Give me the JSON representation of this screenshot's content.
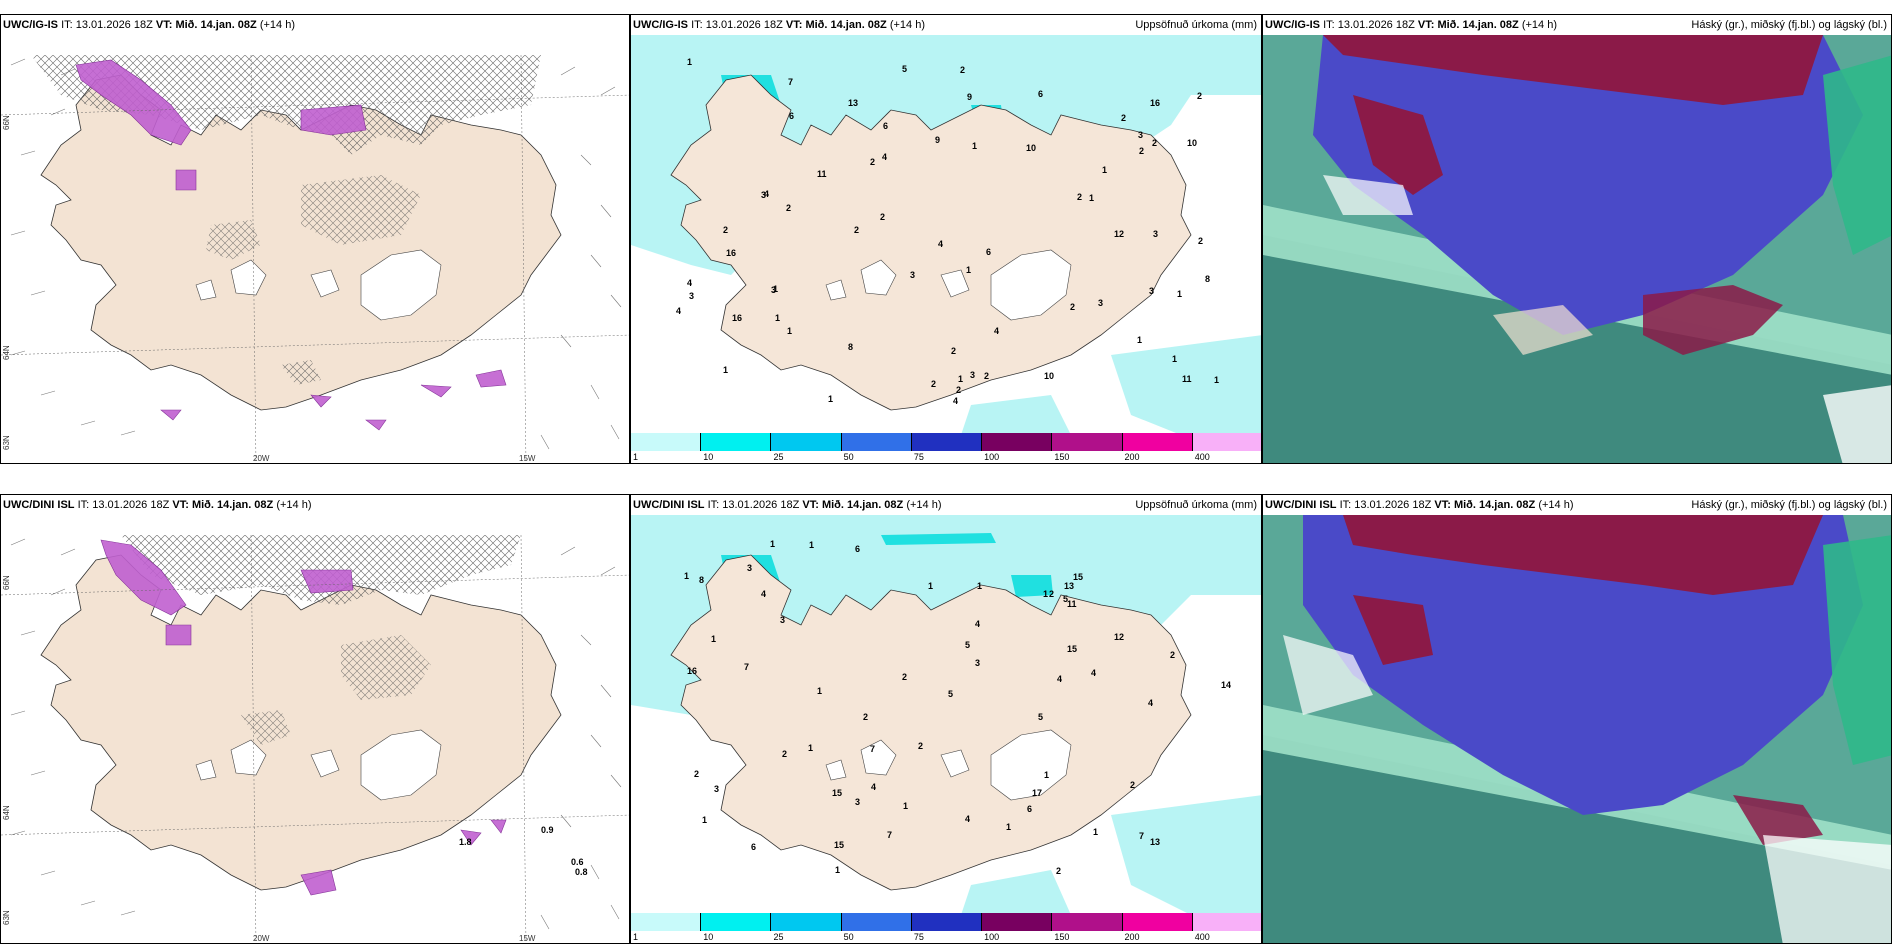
{
  "panels": {
    "top_left": {
      "model": "UWC/IG-IS",
      "it_prefix": "IT:",
      "it": "13.01.2026 18Z",
      "vt_prefix": "VT:",
      "vt": "Mið. 14.jan. 08Z",
      "lead": "(+14 h)",
      "right": ""
    },
    "top_mid": {
      "model": "UWC/IG-IS",
      "it_prefix": "IT:",
      "it": "13.01.2026 18Z",
      "vt_prefix": "VT:",
      "vt": "Mið. 14.jan. 08Z",
      "lead": "(+14 h)",
      "right": "Uppsöfnuð úrkoma (mm)"
    },
    "top_right": {
      "model": "UWC/IG-IS",
      "it_prefix": "IT:",
      "it": "13.01.2026 18Z",
      "vt_prefix": "VT:",
      "vt": "Mið. 14.jan. 08Z",
      "lead": "(+14 h)",
      "right": "Háský (gr.), miðský (fj.bl.) og lágský (bl.)"
    },
    "bottom_left": {
      "model": "UWC/DINI ISL",
      "it_prefix": "IT:",
      "it": "13.01.2026 18Z",
      "vt_prefix": "VT:",
      "vt": "Mið. 14.jan. 08Z",
      "lead": "(+14 h)",
      "right": ""
    },
    "bottom_mid": {
      "model": "UWC/DINI ISL",
      "it_prefix": "IT:",
      "it": "13.01.2026 18Z",
      "vt_prefix": "VT:",
      "vt": "Mið. 14.jan. 08Z",
      "lead": "(+14 h)",
      "right": "Uppsöfnuð úrkoma (mm)"
    },
    "bottom_right": {
      "model": "UWC/DINI ISL",
      "it_prefix": "IT:",
      "it": "13.01.2026 18Z",
      "vt_prefix": "VT:",
      "vt": "Mið. 14.jan. 08Z",
      "lead": "(+14 h)",
      "right": "Háský (gr.), miðský (fj.bl.) og lágský (bl.)"
    }
  },
  "axis_labels": {
    "lat_66": "66N",
    "lat_64": "64N",
    "lat_63": "63N",
    "lon_20": "20W",
    "lon_15": "15W"
  },
  "colorbar": {
    "ticks": [
      "1",
      "10",
      "25",
      "50",
      "75",
      "100",
      "150",
      "200",
      "400"
    ],
    "colors": [
      "#c8fafa",
      "#00f0f0",
      "#00c8f0",
      "#3070e8",
      "#2030c0",
      "#780060",
      "#b0108a",
      "#f000a0",
      "#f8b0f8"
    ]
  },
  "precip_labels_top": [
    "2",
    "2",
    "4",
    "12",
    "2",
    "9",
    "3",
    "10",
    "2",
    "2",
    "1",
    "1",
    "8",
    "7",
    "6",
    "6",
    "13",
    "10",
    "1",
    "1",
    "1",
    "3",
    "3",
    "1",
    "2",
    "11",
    "10",
    "11",
    "8",
    "16",
    "4",
    "4",
    "6",
    "4",
    "3",
    "2",
    "3",
    "2",
    "4",
    "2",
    "2",
    "3",
    "2",
    "2",
    "1",
    "2",
    "2",
    "1",
    "1",
    "6",
    "3",
    "1",
    "1",
    "1",
    "1",
    "1",
    "1",
    "2",
    "4",
    "4",
    "5",
    "9",
    "16",
    "16",
    "3",
    "2",
    "3",
    "2"
  ],
  "precip_labels_bottom": [
    "3",
    "13",
    "4",
    "4",
    "1",
    "7",
    "7",
    "15",
    "15",
    "3",
    "6",
    "5",
    "14",
    "4",
    "12",
    "11",
    "15",
    "16",
    "17",
    "15",
    "13",
    "7",
    "8",
    "6",
    "5",
    "2",
    "2",
    "1",
    "1",
    "1",
    "3",
    "3",
    "2",
    "2",
    "1",
    "1",
    "1",
    "1",
    "1",
    "1",
    "5",
    "1",
    "2",
    "1",
    "1",
    "2",
    "7",
    "2",
    "3",
    "6",
    "5",
    "4",
    "4",
    "4",
    "4",
    "2",
    "1",
    "2",
    "1"
  ],
  "wind_values_bottom": [
    "1.8",
    "0.9",
    "0.6",
    "0.8"
  ],
  "cloud_colors": {
    "high": "#00d08a",
    "mid": "#3b3bd0",
    "low": "#a0123f"
  }
}
